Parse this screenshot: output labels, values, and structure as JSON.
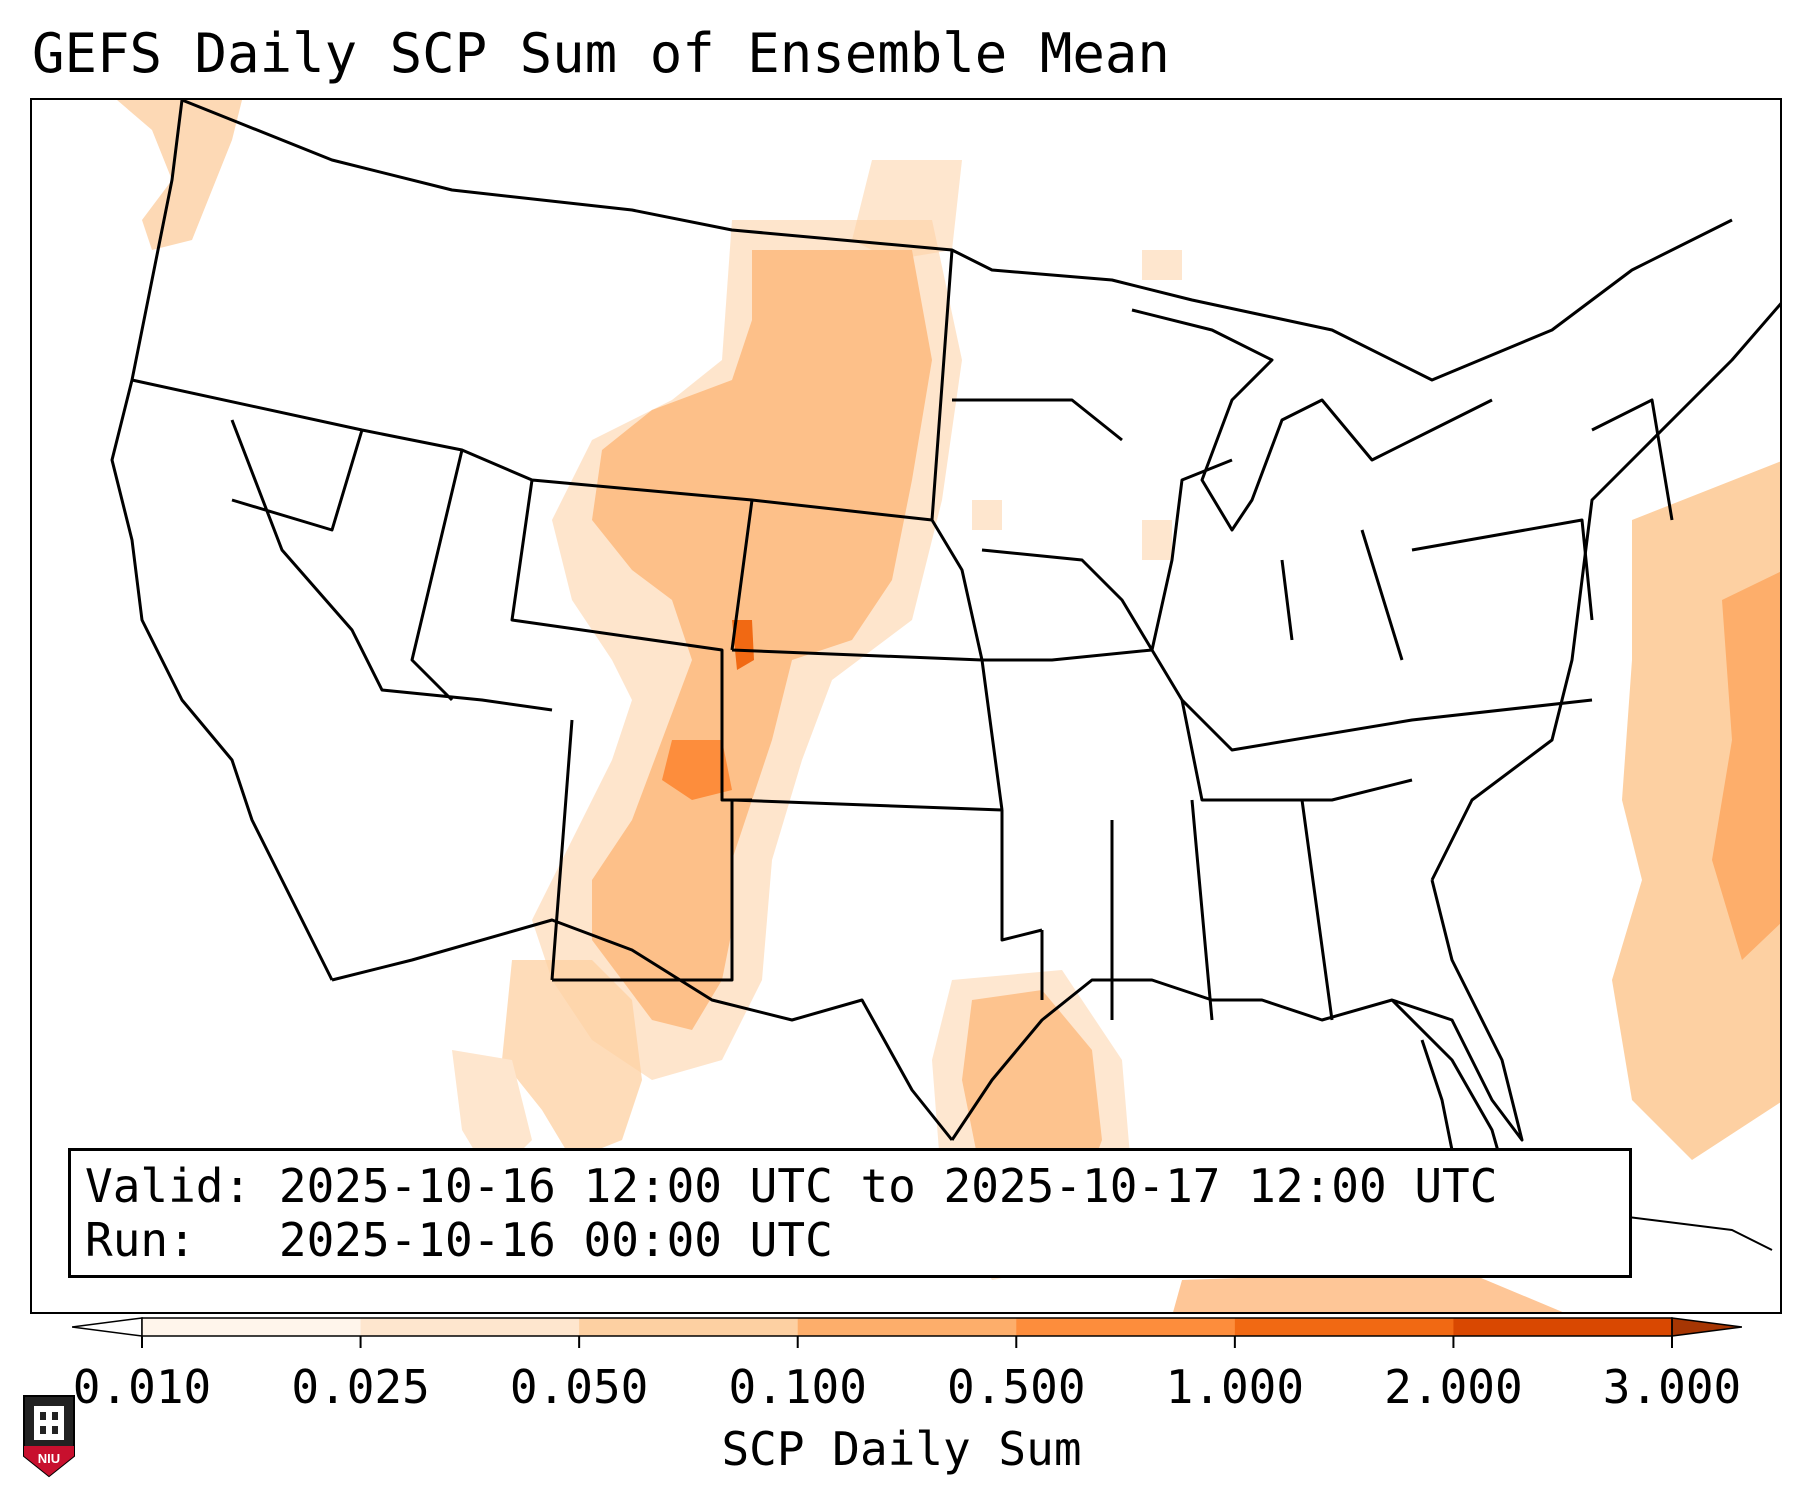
{
  "title": "GEFS Daily SCP Sum of Ensemble Mean",
  "info": {
    "valid_label": "Valid:",
    "valid_value": "2025-10-16 12:00 UTC to 2025-10-17 12:00 UTC",
    "run_label": "Run:",
    "run_value": "2025-10-16 00:00 UTC"
  },
  "colorbar": {
    "label": "SCP Daily Sum",
    "ticks": [
      "0.010",
      "0.025",
      "0.050",
      "0.100",
      "0.500",
      "1.000",
      "2.000",
      "3.000"
    ],
    "colors": [
      "#fff5eb",
      "#fee6ce",
      "#fdd0a2",
      "#fdae6b",
      "#fd8d3c",
      "#f16913",
      "#d94801",
      "#a63603"
    ],
    "extend": "both"
  },
  "logo": {
    "text": "NIU",
    "name": "niu-logo"
  },
  "map": {
    "region": "Continental United States",
    "outline_color": "#000000",
    "fill_colors": {
      "very_light": "#fee6ce",
      "light": "#fdd0a2",
      "medium": "#fdae6b",
      "strong": "#fd8d3c",
      "peak": "#f16913"
    }
  }
}
